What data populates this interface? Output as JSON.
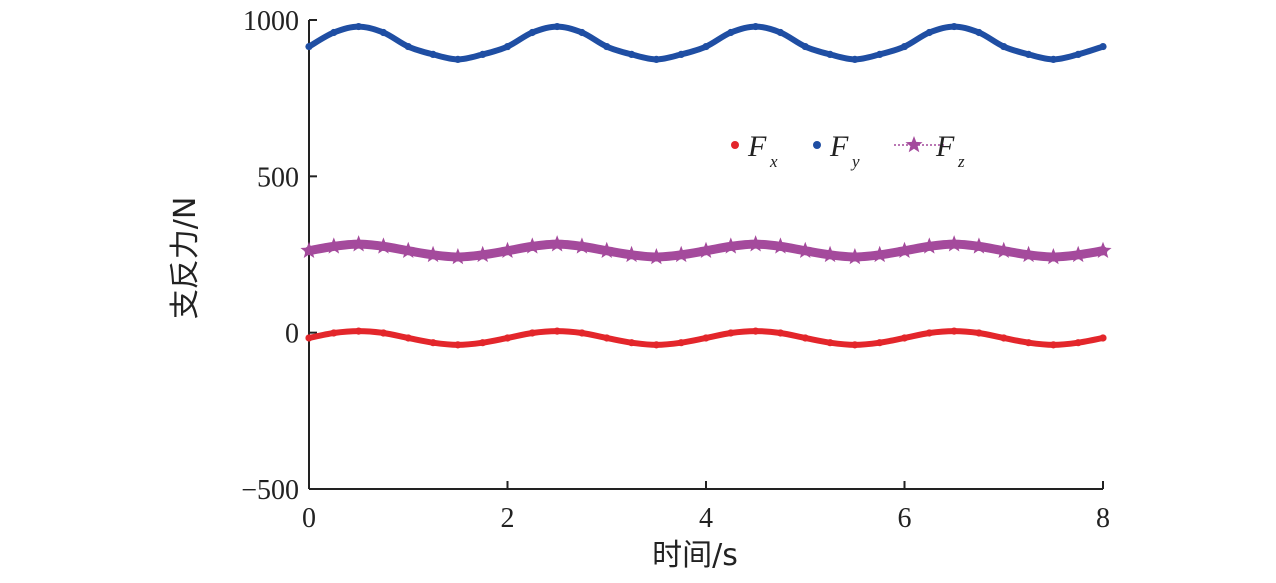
{
  "chart_data": {
    "type": "line",
    "xlabel": "时间/s",
    "ylabel": "支反力/N",
    "xlim": [
      0,
      8
    ],
    "ylim": [
      -500,
      1000
    ],
    "x_ticks": [
      "0",
      "2",
      "4",
      "6",
      "8"
    ],
    "y_ticks": [
      "−500",
      "0",
      "500",
      "1000"
    ],
    "legend_position": "upper-right",
    "grid": false,
    "series": [
      {
        "name": "F",
        "subscript": "x",
        "color": "#e3262b",
        "marker": "dot",
        "x": [
          0,
          0.25,
          0.5,
          0.75,
          1.0,
          1.25,
          1.5,
          1.75,
          2.0,
          2.25,
          2.5,
          2.75,
          3.0,
          3.25,
          3.5,
          3.75,
          4.0,
          4.25,
          4.5,
          4.75,
          5.0,
          5.25,
          5.5,
          5.75,
          6.0,
          6.25,
          6.5,
          6.75,
          7.0,
          7.25,
          7.5,
          7.75,
          8.0
        ],
        "y": [
          -17,
          -1,
          5,
          -1,
          -17,
          -32,
          -39,
          -32,
          -17,
          -1,
          5,
          -1,
          -17,
          -32,
          -39,
          -32,
          -17,
          -1,
          5,
          -1,
          -17,
          -32,
          -39,
          -32,
          -17,
          -1,
          5,
          -1,
          -17,
          -32,
          -39,
          -32,
          -17
        ]
      },
      {
        "name": "F",
        "subscript": "y",
        "color": "#1f4ea3",
        "marker": "dot",
        "x": [
          0,
          0.25,
          0.5,
          0.75,
          1.0,
          1.25,
          1.5,
          1.75,
          2.0,
          2.25,
          2.5,
          2.75,
          3.0,
          3.25,
          3.5,
          3.75,
          4.0,
          4.25,
          4.5,
          4.75,
          5.0,
          5.25,
          5.5,
          5.75,
          6.0,
          6.25,
          6.5,
          6.75,
          7.0,
          7.25,
          7.5,
          7.75,
          8.0
        ],
        "y": [
          915,
          960,
          979,
          960,
          915,
          890,
          874,
          890,
          915,
          960,
          979,
          960,
          915,
          890,
          874,
          890,
          915,
          960,
          979,
          960,
          915,
          890,
          874,
          890,
          915,
          960,
          979,
          960,
          915,
          890,
          874,
          890,
          915
        ]
      },
      {
        "name": "F",
        "subscript": "z",
        "color": "#a44a9c",
        "marker": "star",
        "x": [
          0,
          0.25,
          0.5,
          0.75,
          1.0,
          1.25,
          1.5,
          1.75,
          2.0,
          2.25,
          2.5,
          2.75,
          3.0,
          3.25,
          3.5,
          3.75,
          4.0,
          4.25,
          4.5,
          4.75,
          5.0,
          5.25,
          5.5,
          5.75,
          6.0,
          6.25,
          6.5,
          6.75,
          7.0,
          7.25,
          7.5,
          7.75,
          8.0
        ],
        "y": [
          262,
          276,
          283,
          276,
          262,
          249,
          242,
          249,
          262,
          276,
          283,
          276,
          262,
          249,
          242,
          249,
          262,
          276,
          283,
          276,
          262,
          249,
          242,
          249,
          262,
          276,
          283,
          276,
          262,
          249,
          242,
          249,
          262
        ]
      }
    ]
  }
}
